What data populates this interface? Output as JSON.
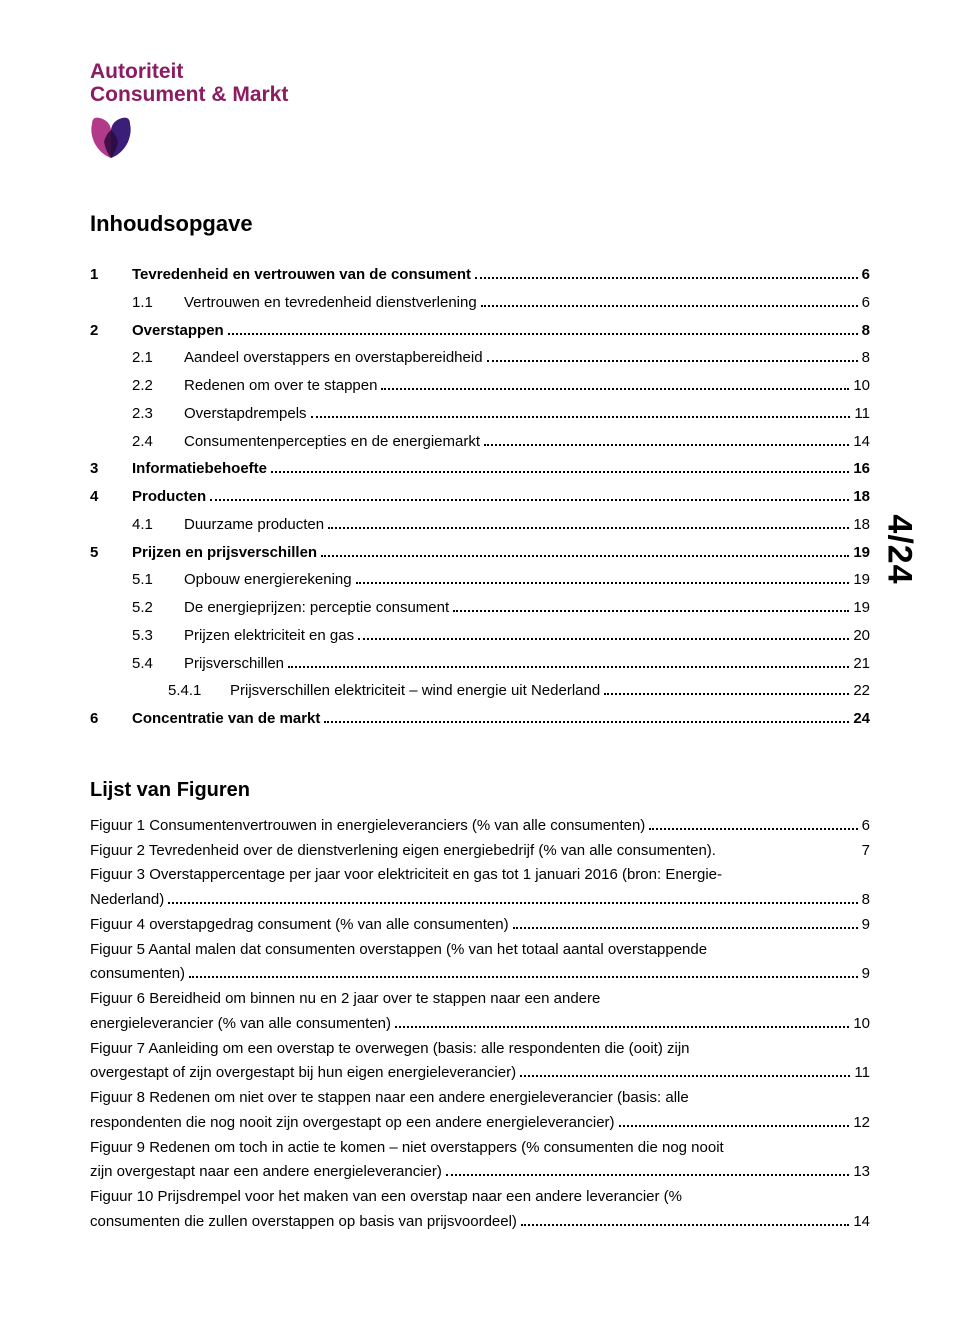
{
  "brand": {
    "line1": "Autoriteit",
    "line2": "Consument & Markt",
    "color": "#8b1c62",
    "icon_fill1": "#b23a8b",
    "icon_fill2": "#3b1e78"
  },
  "page_number": "4/24",
  "toc": {
    "heading": "Inhoudsopgave",
    "entries": [
      {
        "level": 1,
        "num": "1",
        "label": "Tevredenheid en vertrouwen van de consument",
        "page": "6"
      },
      {
        "level": 2,
        "num": "1.1",
        "label": "Vertrouwen en tevredenheid dienstverlening",
        "page": "6"
      },
      {
        "level": 1,
        "num": "2",
        "label": "Overstappen",
        "page": "8"
      },
      {
        "level": 2,
        "num": "2.1",
        "label": "Aandeel overstappers en overstapbereidheid",
        "page": "8"
      },
      {
        "level": 2,
        "num": "2.2",
        "label": "Redenen om over te stappen",
        "page": "10"
      },
      {
        "level": 2,
        "num": "2.3",
        "label": "Overstapdrempels",
        "page": "11"
      },
      {
        "level": 2,
        "num": "2.4",
        "label": "Consumentenpercepties en de energiemarkt",
        "page": "14"
      },
      {
        "level": 1,
        "num": "3",
        "label": "Informatiebehoefte",
        "page": "16"
      },
      {
        "level": 1,
        "num": "4",
        "label": "Producten",
        "page": "18"
      },
      {
        "level": 2,
        "num": "4.1",
        "label": "Duurzame producten",
        "page": "18"
      },
      {
        "level": 1,
        "num": "5",
        "label": "Prijzen en prijsverschillen",
        "page": "19"
      },
      {
        "level": 2,
        "num": "5.1",
        "label": "Opbouw energierekening",
        "page": "19"
      },
      {
        "level": 2,
        "num": "5.2",
        "label": "De energieprijzen: perceptie consument",
        "page": "19"
      },
      {
        "level": 2,
        "num": "5.3",
        "label": "Prijzen elektriciteit en gas",
        "page": "20"
      },
      {
        "level": 2,
        "num": "5.4",
        "label": "Prijsverschillen",
        "page": "21"
      },
      {
        "level": 3,
        "num": "5.4.1",
        "label": "Prijsverschillen elektriciteit – wind energie uit Nederland",
        "page": "22"
      },
      {
        "level": 1,
        "num": "6",
        "label": "Concentratie van de markt",
        "page": "24"
      }
    ]
  },
  "figlist": {
    "heading": "Lijst van Figuren",
    "entries": [
      {
        "pre": null,
        "last": "Figuur 1 Consumentenvertrouwen in energieleveranciers (% van alle consumenten)",
        "page": "6"
      },
      {
        "pre": null,
        "last": "Figuur 2 Tevredenheid over de dienstverlening eigen energiebedrijf (% van alle consumenten).",
        "page": "7",
        "nodots": true
      },
      {
        "pre": "Figuur 3 Overstappercentage per jaar voor elektriciteit en gas tot 1 januari 2016 (bron: Energie-",
        "last": "Nederland)",
        "page": "8"
      },
      {
        "pre": null,
        "last": "Figuur 4 overstapgedrag consument (% van alle consumenten)",
        "page": "9"
      },
      {
        "pre": "Figuur 5 Aantal malen dat consumenten overstappen (% van het totaal aantal overstappende",
        "last": "consumenten)",
        "page": "9"
      },
      {
        "pre": "Figuur 6 Bereidheid om binnen nu en 2 jaar over te stappen naar een andere",
        "last": "energieleverancier (% van alle consumenten)",
        "page": "10"
      },
      {
        "pre": "Figuur 7 Aanleiding om een overstap te overwegen (basis: alle respondenten die (ooit) zijn",
        "last": "overgestapt of zijn overgestapt bij hun eigen energieleverancier)",
        "page": "11"
      },
      {
        "pre": "Figuur 8 Redenen om niet over te stappen naar een andere energieleverancier (basis: alle",
        "last": "respondenten die nog nooit zijn overgestapt op een andere energieleverancier)",
        "page": "12"
      },
      {
        "pre": "Figuur 9 Redenen om toch in actie te komen – niet overstappers (% consumenten die nog nooit",
        "last": "zijn overgestapt naar een andere energieleverancier)",
        "page": "13"
      },
      {
        "pre": "Figuur 10 Prijsdrempel voor het maken van een overstap naar een andere leverancier (%",
        "last": "consumenten die zullen overstappen op basis van prijsvoordeel)",
        "page": "14"
      }
    ]
  }
}
